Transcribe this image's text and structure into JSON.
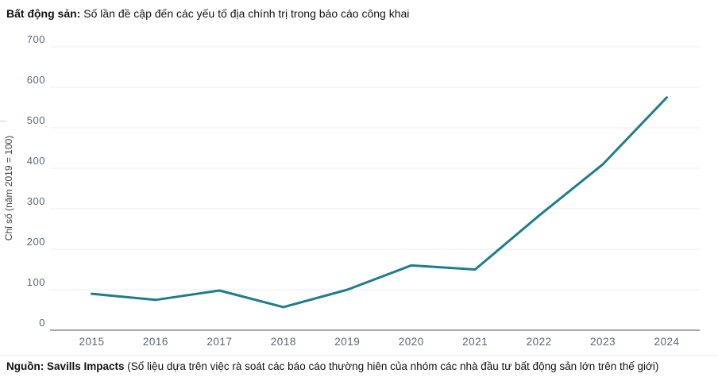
{
  "title": {
    "bold": "Bất động sản:",
    "rest": " Số lần đề cập đến các yếu tố địa chính trị trong báo cáo công khai"
  },
  "source": {
    "bold": "Nguồn: Savills Impacts",
    "rest": " (Số liệu dựa trên việc rà soát các báo cáo thường hiên của nhóm các nhà đầu tư bất động sản lớn trên thế giới)"
  },
  "chart_data": {
    "type": "line",
    "title": "Bất động sản: Số lần đề cập đến các yếu tố địa chính trị trong báo cáo công khai",
    "categories": [
      "2015",
      "2016",
      "2017",
      "2018",
      "2019",
      "2020",
      "2021",
      "2022",
      "2023",
      "2024"
    ],
    "values": [
      90,
      75,
      98,
      57,
      100,
      160,
      150,
      283,
      410,
      575
    ],
    "xlabel": "",
    "ylabel": "Chỉ số (năm 2019 = 100)",
    "ylim": [
      0,
      700
    ],
    "y_ticks": [
      0,
      100,
      200,
      300,
      400,
      500,
      600,
      700
    ],
    "grid": true,
    "legend": "none"
  },
  "colors": {
    "line": "#1e7d8c",
    "gridline": "#ececec",
    "axis_line": "#8c8c8c",
    "tick_label": "#5c6670",
    "baseline_rule": "#e9e9e9",
    "title_text": "#111111"
  }
}
